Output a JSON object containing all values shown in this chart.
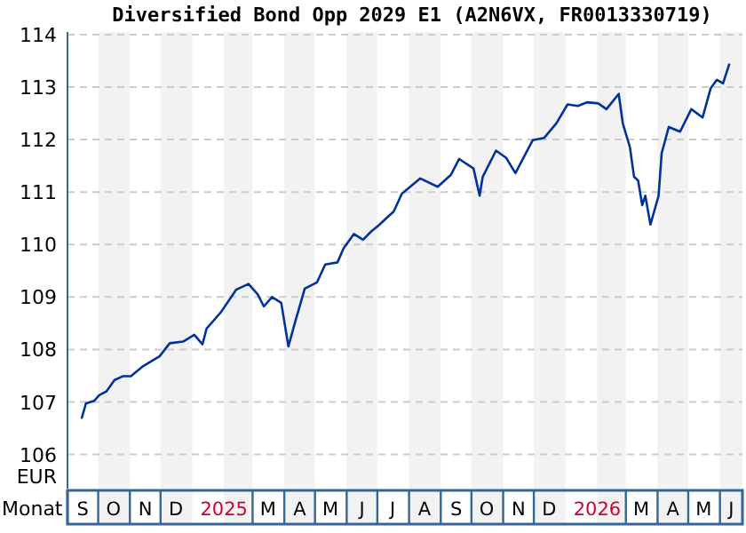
{
  "chart_data": {
    "type": "line",
    "title": "Diversified Bond Opp 2029 E1 (A2N6VX, FR0013330719)",
    "xlabel": "Monat",
    "ylabel": "EUR",
    "xlim": [
      "2024-09-01",
      "2026-06-23"
    ],
    "ylim": [
      105.35,
      114.05
    ],
    "yticks": [
      106,
      107,
      108,
      109,
      110,
      111,
      112,
      113,
      114
    ],
    "xticks": [
      {
        "value": "2024-09-16",
        "label": "S"
      },
      {
        "value": "2024-10-16",
        "label": "O"
      },
      {
        "value": "2024-11-16",
        "label": "N"
      },
      {
        "value": "2024-12-16",
        "label": "D"
      },
      {
        "value": "2025-02-01",
        "label": "2025"
      },
      {
        "value": "2025-03-16",
        "label": "M"
      },
      {
        "value": "2025-04-16",
        "label": "A"
      },
      {
        "value": "2025-05-16",
        "label": "M"
      },
      {
        "value": "2025-06-16",
        "label": "J"
      },
      {
        "value": "2025-07-16",
        "label": "J"
      },
      {
        "value": "2025-08-16",
        "label": "A"
      },
      {
        "value": "2025-09-16",
        "label": "S"
      },
      {
        "value": "2025-10-16",
        "label": "O"
      },
      {
        "value": "2025-11-16",
        "label": "N"
      },
      {
        "value": "2025-12-16",
        "label": "D"
      },
      {
        "value": "2026-02-01",
        "label": "2026"
      },
      {
        "value": "2026-03-16",
        "label": "M"
      },
      {
        "value": "2026-04-16",
        "label": "A"
      },
      {
        "value": "2026-05-16",
        "label": "M"
      },
      {
        "value": "2026-06-12",
        "label": "J"
      }
    ],
    "grid": true,
    "line_style": "solid",
    "bands": [
      {
        "axis": "x",
        "from": "2024-10-01",
        "to": "2024-11-01",
        "color": "#f2f2f2"
      },
      {
        "axis": "x",
        "from": "2024-12-01",
        "to": "2025-01-01",
        "color": "#f2f2f2"
      },
      {
        "axis": "x",
        "from": "2025-02-01",
        "to": "2025-03-01",
        "color": "#f2f2f2"
      },
      {
        "axis": "x",
        "from": "2025-04-01",
        "to": "2025-05-01",
        "color": "#f2f2f2"
      },
      {
        "axis": "x",
        "from": "2025-06-01",
        "to": "2025-07-01",
        "color": "#f2f2f2"
      },
      {
        "axis": "x",
        "from": "2025-08-01",
        "to": "2025-09-01",
        "color": "#f2f2f2"
      },
      {
        "axis": "x",
        "from": "2025-10-01",
        "to": "2025-11-01",
        "color": "#f2f2f2"
      },
      {
        "axis": "x",
        "from": "2025-12-01",
        "to": "2026-01-01",
        "color": "#f2f2f2"
      },
      {
        "axis": "x",
        "from": "2026-02-01",
        "to": "2026-03-01",
        "color": "#f2f2f2"
      },
      {
        "axis": "x",
        "from": "2026-04-01",
        "to": "2026-05-01",
        "color": "#f2f2f2"
      },
      {
        "axis": "x",
        "from": "2026-06-01",
        "to": "2026-06-23",
        "color": "#f2f2f2"
      }
    ],
    "series": [
      {
        "color": "#003399",
        "x": [
          "2024-09-15",
          "2024-09-19",
          "2024-09-27",
          "2024-10-02",
          "2024-10-09",
          "2024-10-17",
          "2024-10-25",
          "2024-11-02",
          "2024-11-13",
          "2024-11-30",
          "2024-12-10",
          "2024-12-23",
          "2025-01-03",
          "2025-01-11",
          "2025-01-15",
          "2025-01-29",
          "2025-02-13",
          "2025-02-25",
          "2025-03-06",
          "2025-03-12",
          "2025-03-20",
          "2025-03-29",
          "2025-04-05",
          "2025-04-12",
          "2025-04-21",
          "2025-05-03",
          "2025-05-11",
          "2025-05-23",
          "2025-05-29",
          "2025-06-08",
          "2025-06-17",
          "2025-06-25",
          "2025-07-02",
          "2025-07-17",
          "2025-07-25",
          "2025-08-12",
          "2025-08-29",
          "2025-09-11",
          "2025-09-19",
          "2025-10-03",
          "2025-10-09",
          "2025-10-12",
          "2025-10-25",
          "2025-11-04",
          "2025-11-13",
          "2025-11-30",
          "2025-12-11",
          "2025-12-23",
          "2026-01-03",
          "2026-01-13",
          "2026-01-22",
          "2026-02-02",
          "2026-02-10",
          "2026-02-22",
          "2026-02-26",
          "2026-03-05",
          "2026-03-09",
          "2026-03-13",
          "2026-03-17",
          "2026-03-20",
          "2026-03-25",
          "2026-04-02",
          "2026-04-05",
          "2026-04-12",
          "2026-04-23",
          "2026-05-04",
          "2026-05-15",
          "2026-05-23",
          "2026-05-29",
          "2026-06-04",
          "2026-06-10"
        ],
        "values": [
          106.7,
          106.97,
          107.02,
          107.13,
          107.2,
          107.42,
          107.49,
          107.49,
          107.67,
          107.87,
          108.12,
          108.15,
          108.28,
          108.1,
          108.4,
          108.71,
          109.14,
          109.25,
          109.05,
          108.82,
          109.0,
          108.89,
          108.06,
          108.55,
          109.16,
          109.28,
          109.62,
          109.66,
          109.93,
          110.2,
          110.09,
          110.25,
          110.36,
          110.63,
          110.97,
          111.26,
          111.1,
          111.33,
          111.63,
          111.45,
          110.93,
          111.29,
          111.79,
          111.65,
          111.36,
          111.99,
          112.03,
          112.31,
          112.67,
          112.64,
          112.71,
          112.69,
          112.58,
          112.87,
          112.31,
          111.85,
          111.29,
          111.22,
          110.75,
          110.93,
          110.38,
          110.93,
          111.74,
          112.24,
          112.15,
          112.58,
          112.42,
          112.98,
          113.14,
          113.07,
          113.43
        ]
      }
    ]
  }
}
